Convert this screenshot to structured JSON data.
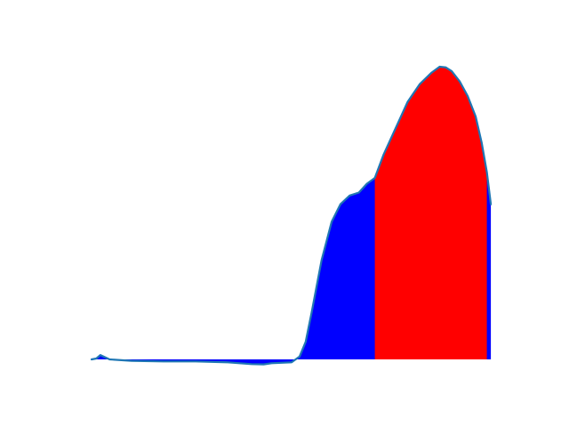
{
  "chart_data": {
    "type": "area",
    "title": "",
    "xlabel": "",
    "ylabel": "",
    "axes_visible": false,
    "grid": false,
    "legend": "none",
    "xlim": [
      0,
      1
    ],
    "ylim": [
      -0.02,
      1.05
    ],
    "baseline": 0,
    "colors": {
      "line": "#1f77b4",
      "fill_outer": "#0000ff",
      "fill_highlight": "#ff0000"
    },
    "highlight_range": [
      0.708,
      0.988
    ],
    "series": [
      {
        "x": [
          0.0,
          0.012,
          0.022,
          0.045,
          0.1,
          0.18,
          0.26,
          0.34,
          0.4,
          0.43,
          0.45,
          0.5,
          0.52,
          0.535,
          0.55,
          0.575,
          0.6,
          0.622,
          0.645,
          0.668,
          0.688,
          0.708,
          0.73,
          0.76,
          0.79,
          0.82,
          0.85,
          0.87,
          0.885,
          0.9,
          0.92,
          0.94,
          0.96,
          0.975,
          0.988,
          0.998
        ],
        "y": [
          0.0,
          0.003,
          0.015,
          0.0,
          -0.005,
          -0.007,
          -0.007,
          -0.01,
          -0.016,
          -0.017,
          -0.013,
          -0.01,
          0.01,
          0.06,
          0.16,
          0.34,
          0.47,
          0.53,
          0.56,
          0.57,
          0.6,
          0.62,
          0.7,
          0.79,
          0.88,
          0.94,
          0.98,
          1.0,
          0.998,
          0.985,
          0.95,
          0.9,
          0.83,
          0.74,
          0.64,
          0.53
        ]
      }
    ]
  }
}
